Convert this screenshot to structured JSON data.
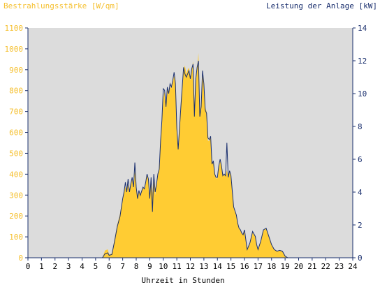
{
  "chart_data": {
    "type": "area",
    "title": "",
    "left_axis_label": "Bestrahlungsstärke [W/qm]",
    "right_axis_label": "Leistung der Anlage [kW]",
    "xlabel": "Uhrzeit in Stunden",
    "x_range": [
      0,
      24
    ],
    "x_ticks": [
      "0",
      "1",
      "2",
      "3",
      "4",
      "5",
      "6",
      "7",
      "8",
      "9",
      "10",
      "11",
      "12",
      "13",
      "14",
      "15",
      "16",
      "17",
      "18",
      "19",
      "20",
      "21",
      "22",
      "23",
      "24"
    ],
    "left_range": [
      0,
      1100
    ],
    "left_ticks": [
      "0",
      "100",
      "200",
      "300",
      "400",
      "500",
      "600",
      "700",
      "800",
      "900",
      "1000",
      "1100"
    ],
    "right_range": [
      0,
      14
    ],
    "right_ticks": [
      "0",
      "2",
      "4",
      "6",
      "8",
      "10",
      "12",
      "14"
    ],
    "colors": {
      "irradiance": "#ffcc33",
      "power": "#1a2f6e",
      "plot_bg": "#dcdcdc",
      "left_text": "#f5c030",
      "right_text": "#1a2f6e"
    },
    "series": [
      {
        "name": "Bestrahlungsstärke",
        "axis": "left",
        "points": [
          [
            0,
            0
          ],
          [
            5.5,
            0
          ],
          [
            5.7,
            35
          ],
          [
            5.9,
            40
          ],
          [
            6.0,
            15
          ],
          [
            6.2,
            20
          ],
          [
            6.4,
            90
          ],
          [
            6.6,
            160
          ],
          [
            6.8,
            210
          ],
          [
            7.0,
            280
          ],
          [
            7.1,
            310
          ],
          [
            7.2,
            340
          ],
          [
            7.3,
            320
          ],
          [
            7.4,
            350
          ],
          [
            7.5,
            310
          ],
          [
            7.6,
            360
          ],
          [
            7.7,
            380
          ],
          [
            7.8,
            330
          ],
          [
            7.9,
            420
          ],
          [
            8.0,
            330
          ],
          [
            8.1,
            300
          ],
          [
            8.2,
            320
          ],
          [
            8.3,
            300
          ],
          [
            8.5,
            340
          ],
          [
            8.6,
            330
          ],
          [
            8.7,
            360
          ],
          [
            8.8,
            400
          ],
          [
            8.9,
            380
          ],
          [
            9.0,
            300
          ],
          [
            9.1,
            380
          ],
          [
            9.2,
            310
          ],
          [
            9.3,
            400
          ],
          [
            9.4,
            300
          ],
          [
            9.5,
            350
          ],
          [
            9.6,
            400
          ],
          [
            9.7,
            420
          ],
          [
            9.8,
            560
          ],
          [
            9.9,
            640
          ],
          [
            10.0,
            760
          ],
          [
            10.1,
            800
          ],
          [
            10.2,
            720
          ],
          [
            10.3,
            810
          ],
          [
            10.4,
            780
          ],
          [
            10.5,
            820
          ],
          [
            10.6,
            810
          ],
          [
            10.7,
            840
          ],
          [
            10.8,
            870
          ],
          [
            10.9,
            850
          ],
          [
            11.0,
            610
          ],
          [
            11.1,
            530
          ],
          [
            11.2,
            610
          ],
          [
            11.3,
            720
          ],
          [
            11.5,
            900
          ],
          [
            11.6,
            920
          ],
          [
            11.7,
            880
          ],
          [
            11.8,
            900
          ],
          [
            11.9,
            910
          ],
          [
            12.0,
            850
          ],
          [
            12.1,
            900
          ],
          [
            12.2,
            940
          ],
          [
            12.3,
            720
          ],
          [
            12.4,
            850
          ],
          [
            12.5,
            910
          ],
          [
            12.6,
            980
          ],
          [
            12.7,
            700
          ],
          [
            12.8,
            740
          ],
          [
            12.9,
            900
          ],
          [
            13.0,
            830
          ],
          [
            13.1,
            720
          ],
          [
            13.2,
            700
          ],
          [
            13.3,
            560
          ],
          [
            13.4,
            560
          ],
          [
            13.5,
            580
          ],
          [
            13.6,
            450
          ],
          [
            13.7,
            460
          ],
          [
            13.8,
            400
          ],
          [
            13.9,
            380
          ],
          [
            14.0,
            380
          ],
          [
            14.1,
            430
          ],
          [
            14.2,
            460
          ],
          [
            14.3,
            440
          ],
          [
            14.4,
            390
          ],
          [
            14.5,
            400
          ],
          [
            14.6,
            390
          ],
          [
            14.7,
            420
          ],
          [
            14.8,
            380
          ],
          [
            14.9,
            410
          ],
          [
            15.0,
            400
          ],
          [
            15.2,
            240
          ],
          [
            15.4,
            200
          ],
          [
            15.5,
            160
          ],
          [
            15.6,
            140
          ],
          [
            15.7,
            130
          ],
          [
            15.8,
            115
          ],
          [
            15.9,
            110
          ],
          [
            16.0,
            130
          ],
          [
            16.2,
            40
          ],
          [
            16.4,
            70
          ],
          [
            16.6,
            120
          ],
          [
            16.8,
            100
          ],
          [
            16.9,
            60
          ],
          [
            17.0,
            40
          ],
          [
            17.2,
            80
          ],
          [
            17.4,
            130
          ],
          [
            17.6,
            140
          ],
          [
            17.8,
            100
          ],
          [
            18.0,
            60
          ],
          [
            18.2,
            40
          ],
          [
            18.4,
            30
          ],
          [
            18.6,
            35
          ],
          [
            18.8,
            30
          ],
          [
            19.0,
            10
          ],
          [
            19.2,
            0
          ],
          [
            24,
            0
          ]
        ]
      },
      {
        "name": "Leistung der Anlage",
        "axis": "right",
        "points": [
          [
            0,
            0
          ],
          [
            5.5,
            0
          ],
          [
            5.7,
            0.25
          ],
          [
            5.9,
            0.3
          ],
          [
            6.0,
            0.15
          ],
          [
            6.2,
            0.2
          ],
          [
            6.4,
            1.0
          ],
          [
            6.6,
            1.9
          ],
          [
            6.8,
            2.5
          ],
          [
            7.0,
            3.6
          ],
          [
            7.1,
            4.0
          ],
          [
            7.2,
            4.6
          ],
          [
            7.3,
            4.0
          ],
          [
            7.4,
            4.8
          ],
          [
            7.5,
            4.0
          ],
          [
            7.6,
            4.5
          ],
          [
            7.7,
            4.9
          ],
          [
            7.8,
            4.3
          ],
          [
            7.9,
            5.8
          ],
          [
            8.0,
            4.3
          ],
          [
            8.1,
            3.6
          ],
          [
            8.2,
            4.1
          ],
          [
            8.3,
            3.8
          ],
          [
            8.5,
            4.3
          ],
          [
            8.6,
            4.2
          ],
          [
            8.7,
            4.6
          ],
          [
            8.8,
            5.1
          ],
          [
            8.9,
            4.8
          ],
          [
            9.0,
            3.6
          ],
          [
            9.1,
            4.9
          ],
          [
            9.2,
            2.8
          ],
          [
            9.3,
            5.1
          ],
          [
            9.4,
            4.0
          ],
          [
            9.5,
            4.5
          ],
          [
            9.6,
            5.1
          ],
          [
            9.7,
            5.4
          ],
          [
            9.8,
            7.1
          ],
          [
            9.9,
            8.4
          ],
          [
            10.0,
            10.3
          ],
          [
            10.1,
            10.2
          ],
          [
            10.2,
            9.2
          ],
          [
            10.3,
            10.4
          ],
          [
            10.4,
            10.0
          ],
          [
            10.5,
            10.6
          ],
          [
            10.6,
            10.4
          ],
          [
            10.7,
            10.8
          ],
          [
            10.8,
            11.3
          ],
          [
            10.9,
            10.6
          ],
          [
            11.0,
            7.9
          ],
          [
            11.1,
            6.6
          ],
          [
            11.2,
            7.9
          ],
          [
            11.3,
            9.2
          ],
          [
            11.5,
            11.6
          ],
          [
            11.6,
            11.2
          ],
          [
            11.7,
            11.0
          ],
          [
            11.8,
            11.2
          ],
          [
            11.9,
            11.4
          ],
          [
            12.0,
            10.9
          ],
          [
            12.1,
            11.5
          ],
          [
            12.2,
            11.8
          ],
          [
            12.3,
            8.6
          ],
          [
            12.4,
            10.9
          ],
          [
            12.5,
            11.6
          ],
          [
            12.6,
            12.0
          ],
          [
            12.7,
            8.6
          ],
          [
            12.8,
            9.2
          ],
          [
            12.9,
            11.4
          ],
          [
            13.0,
            10.6
          ],
          [
            13.1,
            9.0
          ],
          [
            13.2,
            8.8
          ],
          [
            13.3,
            7.3
          ],
          [
            13.4,
            7.2
          ],
          [
            13.5,
            7.4
          ],
          [
            13.6,
            5.7
          ],
          [
            13.7,
            5.9
          ],
          [
            13.8,
            5.1
          ],
          [
            13.9,
            4.9
          ],
          [
            14.0,
            4.9
          ],
          [
            14.1,
            5.6
          ],
          [
            14.2,
            6.0
          ],
          [
            14.3,
            5.6
          ],
          [
            14.4,
            5.0
          ],
          [
            14.5,
            5.1
          ],
          [
            14.6,
            5.0
          ],
          [
            14.7,
            7.0
          ],
          [
            14.8,
            4.9
          ],
          [
            14.9,
            5.3
          ],
          [
            15.0,
            5.0
          ],
          [
            15.2,
            3.1
          ],
          [
            15.4,
            2.6
          ],
          [
            15.5,
            2.1
          ],
          [
            15.6,
            1.8
          ],
          [
            15.7,
            1.7
          ],
          [
            15.8,
            1.5
          ],
          [
            15.9,
            1.4
          ],
          [
            16.0,
            1.7
          ],
          [
            16.2,
            0.5
          ],
          [
            16.4,
            0.9
          ],
          [
            16.6,
            1.6
          ],
          [
            16.8,
            1.3
          ],
          [
            16.9,
            0.8
          ],
          [
            17.0,
            0.5
          ],
          [
            17.2,
            1.0
          ],
          [
            17.4,
            1.7
          ],
          [
            17.6,
            1.8
          ],
          [
            17.8,
            1.3
          ],
          [
            18.0,
            0.8
          ],
          [
            18.2,
            0.5
          ],
          [
            18.4,
            0.4
          ],
          [
            18.6,
            0.45
          ],
          [
            18.8,
            0.4
          ],
          [
            19.0,
            0.1
          ],
          [
            19.2,
            0
          ],
          [
            24,
            0
          ]
        ]
      }
    ]
  }
}
